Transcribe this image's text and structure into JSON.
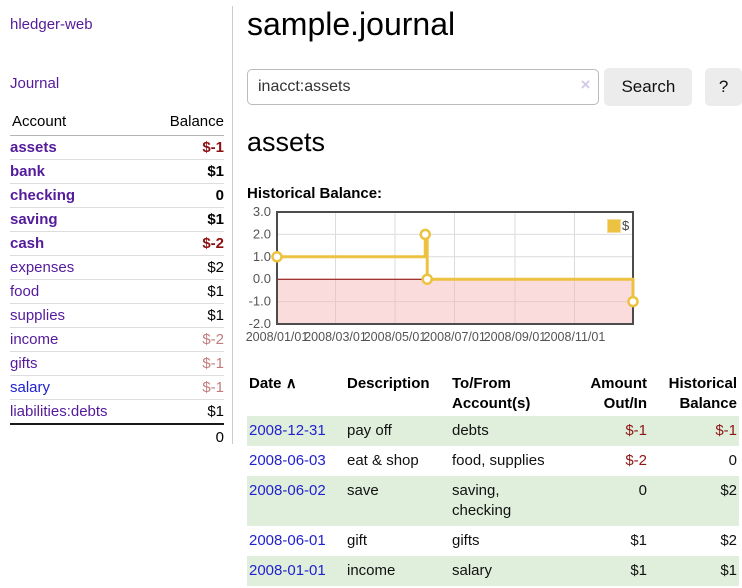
{
  "sidebar": {
    "brand": "hledger-web",
    "journal_label": "Journal",
    "accounts_table": {
      "headers": {
        "account": "Account",
        "balance": "Balance"
      },
      "rows": [
        {
          "name": "assets",
          "balance": "$-1",
          "depth": 0,
          "emphasis": true,
          "balance_tone": "neg-strong"
        },
        {
          "name": "bank",
          "balance": "$1",
          "depth": 1,
          "emphasis": true,
          "balance_tone": "normal"
        },
        {
          "name": "checking",
          "balance": "0",
          "depth": 2,
          "emphasis": true,
          "balance_tone": "normal"
        },
        {
          "name": "saving",
          "balance": "$1",
          "depth": 2,
          "emphasis": true,
          "balance_tone": "normal"
        },
        {
          "name": "cash",
          "balance": "$-2",
          "depth": 1,
          "emphasis": true,
          "balance_tone": "neg-strong"
        },
        {
          "name": "expenses",
          "balance": "$2",
          "depth": 0,
          "emphasis": false,
          "balance_tone": "normal"
        },
        {
          "name": "food",
          "balance": "$1",
          "depth": 1,
          "emphasis": false,
          "balance_tone": "normal"
        },
        {
          "name": "supplies",
          "balance": "$1",
          "depth": 1,
          "emphasis": false,
          "balance_tone": "normal"
        },
        {
          "name": "income",
          "balance": "$-2",
          "depth": 0,
          "emphasis": false,
          "balance_tone": "neg-soft"
        },
        {
          "name": "gifts",
          "balance": "$-1",
          "depth": 1,
          "emphasis": false,
          "balance_tone": "neg-soft"
        },
        {
          "name": "salary",
          "balance": "$-1",
          "depth": 1,
          "emphasis": false,
          "balance_tone": "neg-soft",
          "link_tone": "unvisited"
        },
        {
          "name": "liabilities:debts",
          "balance": "$1",
          "depth": 0,
          "emphasis": false,
          "balance_tone": "normal",
          "flat": true
        }
      ],
      "total": "0"
    }
  },
  "main": {
    "title": "sample.journal",
    "search": {
      "value": "inacct:assets",
      "clear_icon": "×",
      "search_label": "Search",
      "help_label": "?"
    },
    "section_title": "assets"
  },
  "chart_data": {
    "type": "line",
    "step": true,
    "title": "Historical Balance:",
    "series": [
      {
        "name": "$",
        "color": "#edc240",
        "points": [
          {
            "date": "2008-01-01",
            "value": 1
          },
          {
            "date": "2008-06-01",
            "value": 2
          },
          {
            "date": "2008-06-03",
            "value": 0
          },
          {
            "date": "2008-12-31",
            "value": -1
          }
        ]
      }
    ],
    "xlim": [
      "2008-01-01",
      "2008-12-31"
    ],
    "ylim": [
      -2,
      3
    ],
    "x_ticks": [
      "2008/01/01",
      "2008/03/01",
      "2008/05/01",
      "2008/07/01",
      "2008/09/01",
      "2008/11/01"
    ],
    "y_ticks": [
      "3.0",
      "2.0",
      "1.0",
      "0.0",
      "-1.0",
      "-2.0"
    ],
    "legend_position": "top-right",
    "grid": true,
    "colors": {
      "grid": "#dcdcdc",
      "border": "#4c4c4c",
      "zero_line": "#8b0000",
      "negative_region": "rgba(246,178,178,0.45)",
      "marker_fill": "#ffffff"
    }
  },
  "transactions": {
    "headers": {
      "date": "Date",
      "sort_asc_icon": "∧",
      "description": "Description",
      "accounts": "To/From Account(s)",
      "amount": "Amount Out/In",
      "balance": "Historical Balance"
    },
    "rows": [
      {
        "date": "2008-12-31",
        "description": "pay off",
        "accounts": "debts",
        "amount": "$-1",
        "balance": "$-1",
        "amount_neg": true,
        "balance_neg": true
      },
      {
        "date": "2008-06-03",
        "description": "eat & shop",
        "accounts": "food, supplies",
        "amount": "$-2",
        "balance": "0",
        "amount_neg": true,
        "balance_neg": false
      },
      {
        "date": "2008-06-02",
        "description": "save",
        "accounts": "saving, checking",
        "amount": "0",
        "balance": "$2",
        "amount_neg": false,
        "balance_neg": false
      },
      {
        "date": "2008-06-01",
        "description": "gift",
        "accounts": "gifts",
        "amount": "$1",
        "balance": "$2",
        "amount_neg": false,
        "balance_neg": false
      },
      {
        "date": "2008-01-01",
        "description": "income",
        "accounts": "salary",
        "amount": "$1",
        "balance": "$1",
        "amount_neg": false,
        "balance_neg": false
      }
    ]
  },
  "colors": {
    "link_purple": "#541b9b",
    "link_blue": "#2122cf",
    "negative_strong": "#8c1010",
    "negative_soft": "#c07e7e",
    "row_stripe_green": "#e0efdc",
    "chart_line_gold": "#edc240",
    "button_bg": "#ececec"
  }
}
